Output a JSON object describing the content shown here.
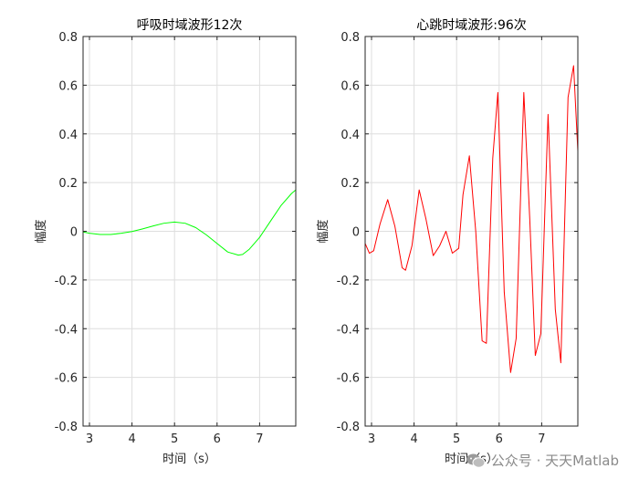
{
  "chart_data": [
    {
      "type": "line",
      "title": "呼吸时域波形12次",
      "xlabel": "时间（s）",
      "ylabel": "幅度",
      "xlim": [
        2.85,
        7.85
      ],
      "ylim": [
        -0.8,
        0.8
      ],
      "xticks": [
        3,
        4,
        5,
        6,
        7
      ],
      "yticks": [
        -0.8,
        -0.6,
        -0.4,
        -0.2,
        0,
        0.2,
        0.4,
        0.6,
        0.8
      ],
      "grid": true,
      "series": [
        {
          "color": "#00ff00",
          "x": [
            2.85,
            3.0,
            3.25,
            3.5,
            3.75,
            4.0,
            4.25,
            4.5,
            4.75,
            5.0,
            5.25,
            5.5,
            5.75,
            6.0,
            6.25,
            6.5,
            6.6,
            6.75,
            7.0,
            7.25,
            7.5,
            7.75,
            7.85
          ],
          "y": [
            -0.003,
            -0.008,
            -0.013,
            -0.013,
            -0.008,
            -0.001,
            0.01,
            0.022,
            0.033,
            0.038,
            0.033,
            0.015,
            -0.015,
            -0.05,
            -0.085,
            -0.098,
            -0.095,
            -0.075,
            -0.025,
            0.04,
            0.105,
            0.155,
            0.17
          ]
        }
      ]
    },
    {
      "type": "line",
      "title": "心跳时域波形:96次",
      "xlabel": "时间（s）",
      "ylabel": "幅度",
      "xlim": [
        2.85,
        7.85
      ],
      "ylim": [
        -0.8,
        0.8
      ],
      "xticks": [
        3,
        4,
        5,
        6,
        7
      ],
      "yticks": [
        -0.8,
        -0.6,
        -0.4,
        -0.2,
        0,
        0.2,
        0.4,
        0.6,
        0.8
      ],
      "grid": true,
      "series": [
        {
          "color": "#ff0000",
          "x": [
            2.85,
            2.95,
            3.05,
            3.2,
            3.38,
            3.55,
            3.72,
            3.8,
            3.95,
            4.12,
            4.28,
            4.45,
            4.6,
            4.75,
            4.9,
            5.05,
            5.15,
            5.3,
            5.45,
            5.6,
            5.7,
            5.85,
            5.97,
            6.12,
            6.27,
            6.4,
            6.58,
            6.72,
            6.85,
            6.98,
            7.15,
            7.32,
            7.45,
            7.62,
            7.75,
            7.85
          ],
          "y": [
            -0.05,
            -0.09,
            -0.08,
            0.03,
            0.13,
            0.02,
            -0.15,
            -0.16,
            -0.06,
            0.17,
            0.05,
            -0.1,
            -0.06,
            0.0,
            -0.09,
            -0.07,
            0.15,
            0.31,
            0.0,
            -0.45,
            -0.46,
            0.3,
            0.57,
            -0.25,
            -0.58,
            -0.44,
            0.57,
            0.05,
            -0.51,
            -0.42,
            0.48,
            -0.32,
            -0.54,
            0.55,
            0.68,
            0.33
          ]
        }
      ]
    }
  ],
  "watermark": {
    "text": "公众号 · 天天Matlab"
  }
}
